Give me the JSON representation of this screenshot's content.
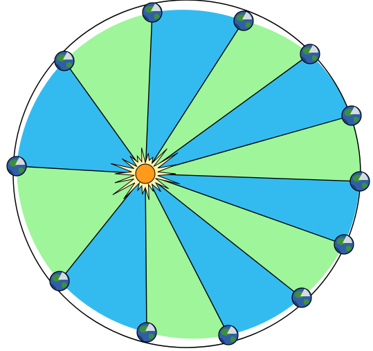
{
  "diagram": {
    "description_visible_text": "",
    "colors": {
      "background": "#ffffff",
      "sector_blue": "#33bbf0",
      "sector_green": "#9ef59a",
      "outline": "#000000",
      "sun_burst": "#fff6b0",
      "sun_core": "#ff9a1a",
      "planet_ocean": "#2f5fa8",
      "planet_land": "#3f8f3a",
      "planet_highlight": "#e8e8e8"
    },
    "sun": {
      "icon": "sun-icon"
    },
    "planet_icon": "earth-icon",
    "sectors": [
      {
        "fill": "blue"
      },
      {
        "fill": "green"
      },
      {
        "fill": "blue"
      },
      {
        "fill": "green"
      },
      {
        "fill": "blue"
      },
      {
        "fill": "green"
      },
      {
        "fill": "blue"
      },
      {
        "fill": "green"
      },
      {
        "fill": "blue"
      },
      {
        "fill": "green"
      },
      {
        "fill": "blue"
      },
      {
        "fill": "green"
      },
      {
        "fill": "blue"
      }
    ]
  }
}
